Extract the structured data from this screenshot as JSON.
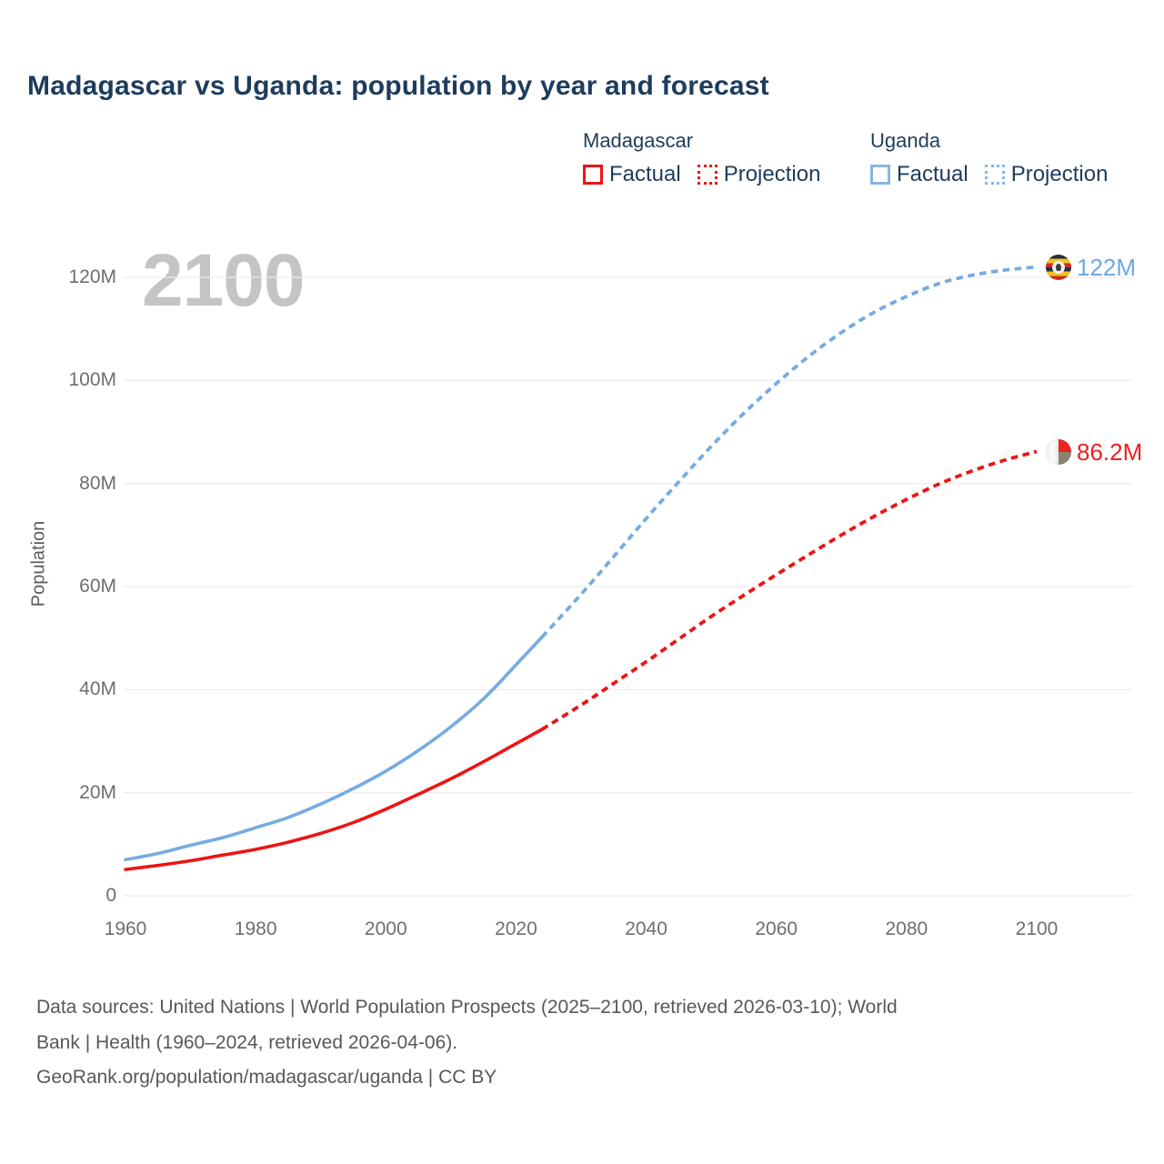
{
  "title": "Madagascar vs Uganda: population by year and forecast",
  "watermark": "2100",
  "legend": {
    "groups": [
      {
        "name": "Madagascar",
        "color": "#ee1414",
        "items": [
          {
            "label": "Factual",
            "style": "solid"
          },
          {
            "label": "Projection",
            "style": "dotted"
          }
        ]
      },
      {
        "name": "Uganda",
        "color": "#85b5e8",
        "items": [
          {
            "label": "Factual",
            "style": "solid"
          },
          {
            "label": "Projection",
            "style": "dotted"
          }
        ]
      }
    ]
  },
  "y_axis": {
    "label": "Population",
    "tick_values": [
      0,
      20,
      40,
      60,
      80,
      100,
      120
    ],
    "tick_labels": [
      "0",
      "20M",
      "40M",
      "60M",
      "80M",
      "100M",
      "120M"
    ]
  },
  "x_axis": {
    "tick_values": [
      1960,
      1980,
      2000,
      2020,
      2040,
      2060,
      2080,
      2100
    ],
    "tick_labels": [
      "1960",
      "1980",
      "2000",
      "2020",
      "2040",
      "2060",
      "2080",
      "2100"
    ]
  },
  "end_labels": [
    {
      "country": "Uganda",
      "value": "122M",
      "color": "#6da7e4",
      "flag": "uganda-flag"
    },
    {
      "country": "Madagascar",
      "value": "86.2M",
      "color": "#ee2021",
      "flag": "madagascar-flag"
    }
  ],
  "footer": {
    "lines": [
      "Data sources: United Nations | World Population Prospects (2025–2100, retrieved 2026-03-10); World",
      "Bank | Health (1960–2024, retrieved 2026-04-06).",
      "GeoRank.org/population/madagascar/uganda | CC BY"
    ]
  },
  "chart_data": {
    "type": "line",
    "title": "Madagascar vs Uganda: population by year and forecast",
    "xlabel": "",
    "ylabel": "Population",
    "xlim": [
      1960,
      2100
    ],
    "ylim": [
      0,
      128
    ],
    "grid": "horizontal-only",
    "legend_position": "top-right",
    "unit": "millions of people",
    "series": [
      {
        "name": "Madagascar",
        "color": "#ee1414",
        "end_label": "86.2M",
        "factual": {
          "x": [
            1960,
            1965,
            1970,
            1975,
            1980,
            1985,
            1990,
            1995,
            2000,
            2005,
            2010,
            2015,
            2020,
            2024
          ],
          "y": [
            5.1,
            5.9,
            6.8,
            7.9,
            9.0,
            10.4,
            12.1,
            14.2,
            16.8,
            19.7,
            22.7,
            26.0,
            29.5,
            32.3
          ]
        },
        "projection": {
          "x": [
            2024,
            2030,
            2035,
            2040,
            2045,
            2050,
            2055,
            2060,
            2065,
            2070,
            2075,
            2080,
            2085,
            2090,
            2095,
            2100
          ],
          "y": [
            32.3,
            37.0,
            41.2,
            45.4,
            49.8,
            54.2,
            58.3,
            62.3,
            66.2,
            70.0,
            73.6,
            76.9,
            79.9,
            82.4,
            84.5,
            86.2
          ]
        }
      },
      {
        "name": "Uganda",
        "color": "#76abe1",
        "end_label": "122M",
        "factual": {
          "x": [
            1960,
            1965,
            1970,
            1975,
            1980,
            1985,
            1990,
            1995,
            2000,
            2005,
            2010,
            2015,
            2020,
            2024
          ],
          "y": [
            7.0,
            8.2,
            9.8,
            11.3,
            13.2,
            15.2,
            17.8,
            20.8,
            24.2,
            28.2,
            32.8,
            38.2,
            44.8,
            50.2
          ]
        },
        "projection": {
          "x": [
            2024,
            2030,
            2035,
            2040,
            2045,
            2050,
            2055,
            2060,
            2065,
            2070,
            2075,
            2080,
            2085,
            2090,
            2095,
            2100
          ],
          "y": [
            50.2,
            58.5,
            65.8,
            73.2,
            80.3,
            87.2,
            93.6,
            99.4,
            104.7,
            109.3,
            113.2,
            116.3,
            118.8,
            120.4,
            121.4,
            122.0
          ]
        }
      }
    ]
  }
}
